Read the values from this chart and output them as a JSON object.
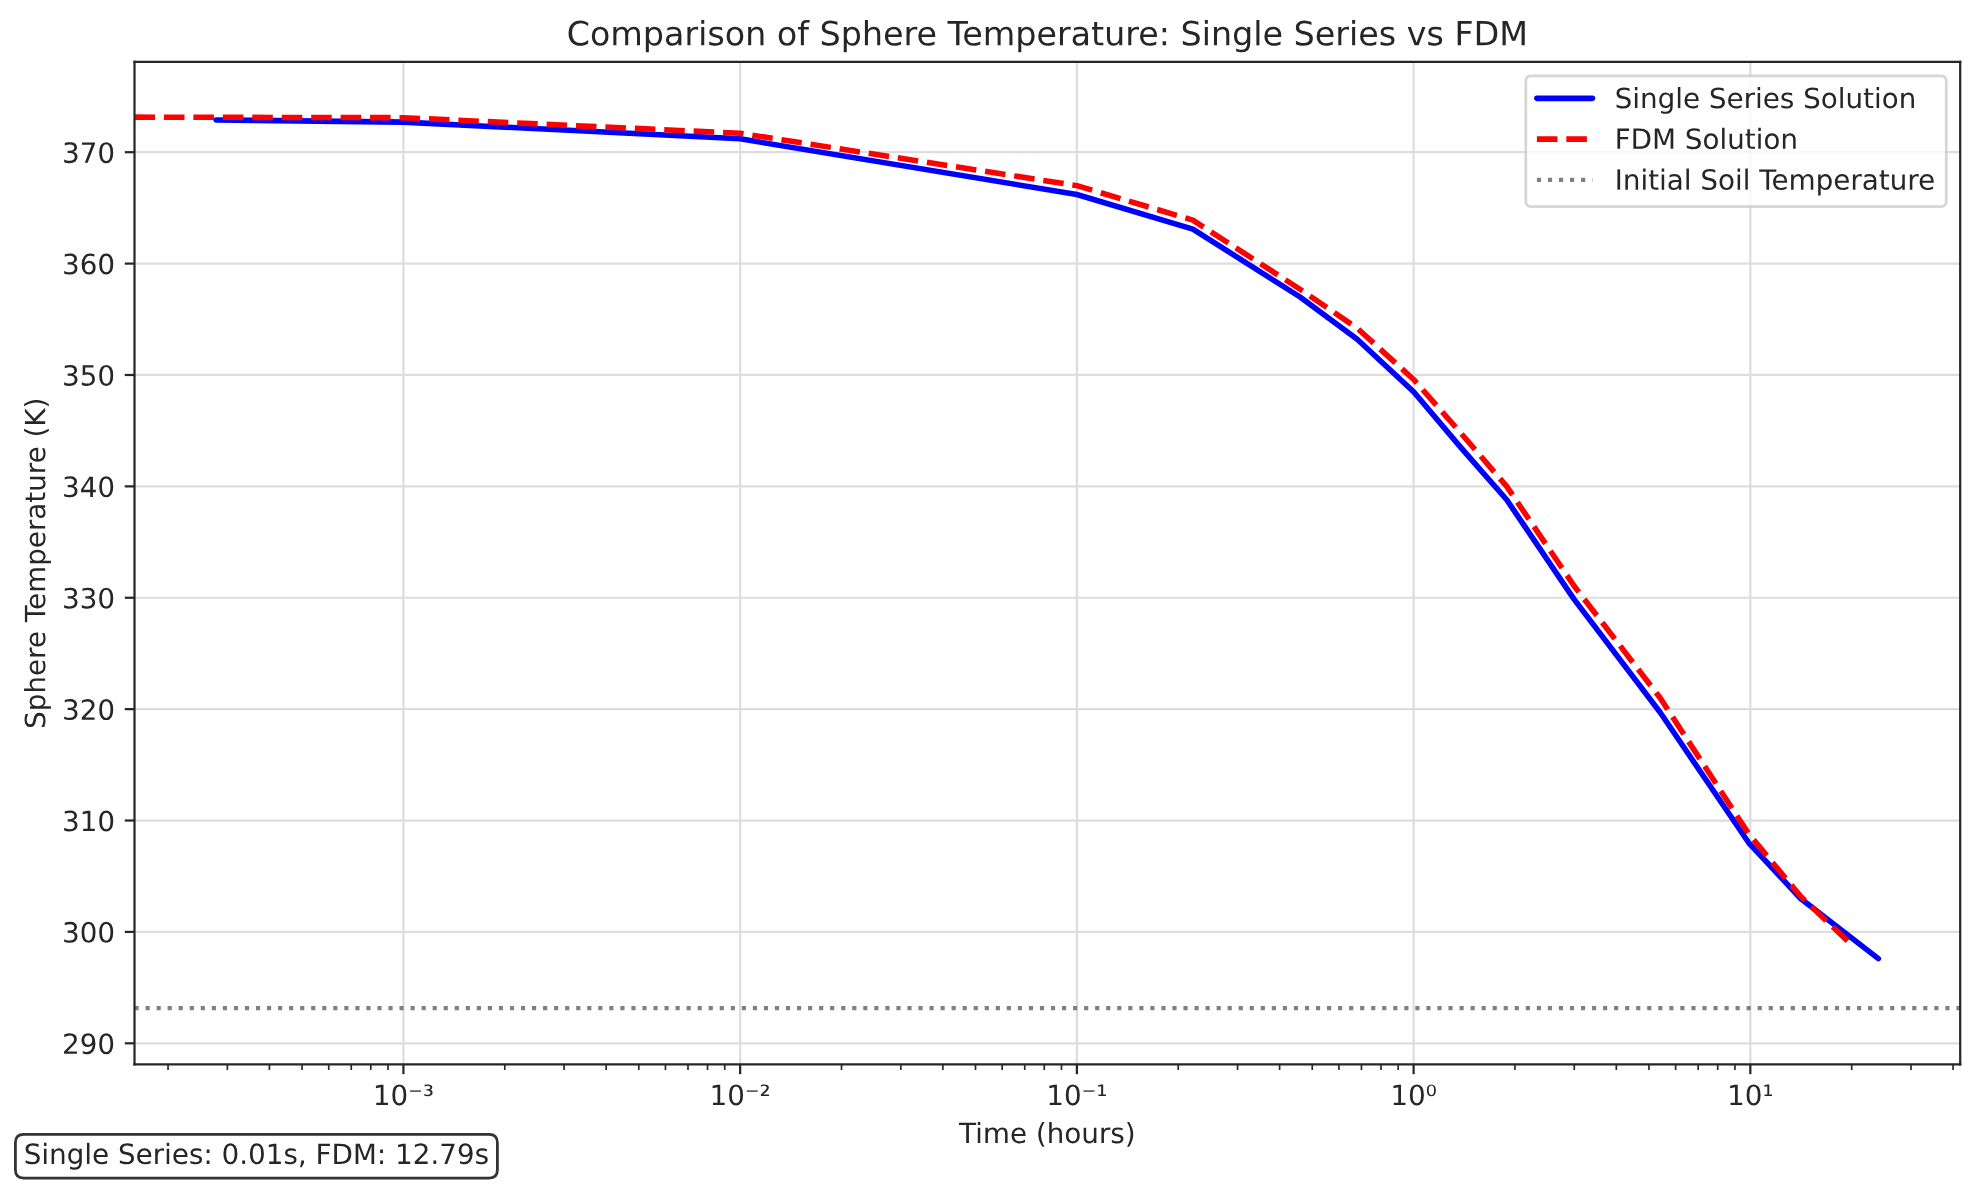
{
  "chart_data": {
    "type": "line",
    "title": "Comparison of Sphere Temperature: Single Series vs FDM",
    "xlabel": "Time (hours)",
    "ylabel": "Sphere Temperature (K)",
    "log": "x",
    "xlim": [
      0.000159,
      42
    ],
    "ylim": [
      288.1,
      378.1
    ],
    "xticks": [
      {
        "value": 0.001,
        "label": "10⁻³"
      },
      {
        "value": 0.01,
        "label": "10⁻²"
      },
      {
        "value": 0.1,
        "label": "10⁻¹"
      },
      {
        "value": 1,
        "label": "10⁰"
      },
      {
        "value": 10,
        "label": "10¹"
      }
    ],
    "yticks": [
      290,
      300,
      310,
      320,
      330,
      340,
      350,
      360,
      370
    ],
    "grid": true,
    "legend": "top right",
    "marker": "none",
    "series": [
      {
        "name": "Single Series Solution",
        "color": "#0000ff",
        "line_style": "solid",
        "x": [
          0.000278,
          0.001,
          0.01,
          0.1,
          0.221,
          0.46,
          0.68,
          1,
          1.38,
          1.89,
          2.99,
          5.4,
          9.89,
          14.1,
          24
        ],
        "values": [
          372.9,
          372.7,
          371.2,
          366.2,
          363.1,
          357.0,
          353.2,
          348.5,
          343.5,
          338.8,
          329.9,
          319.7,
          308.0,
          303.0,
          297.6
        ]
      },
      {
        "name": "FDM Solution",
        "color": "#ff0000",
        "line_style": "dashed",
        "x": [
          0.000159,
          0.001,
          0.01,
          0.1,
          0.221,
          0.46,
          0.68,
          1,
          1.38,
          1.89,
          2.99,
          5.4,
          9.89,
          14.1,
          20.2
        ],
        "values": [
          373.15,
          373.1,
          371.7,
          367.0,
          363.9,
          357.7,
          354.2,
          349.6,
          344.8,
          340.0,
          331.1,
          321.0,
          308.8,
          303.2,
          298.7
        ]
      }
    ],
    "ref_lines": [
      {
        "axis": "y",
        "value": 293.15,
        "label": "Initial Soil Temperature",
        "color": "#808080",
        "line_style": "dotted"
      }
    ],
    "annotations": [
      "Single Series: 0.01s, FDM: 12.79s"
    ]
  }
}
